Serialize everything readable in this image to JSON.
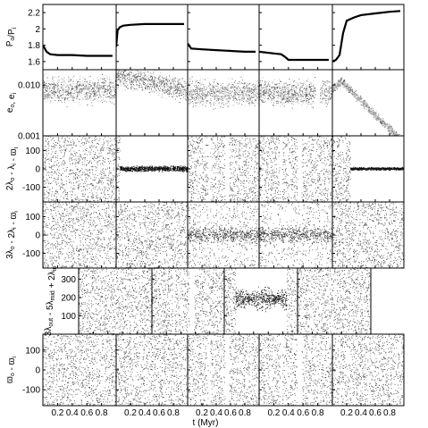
{
  "figure": {
    "xlabel": "t (Myr)"
  },
  "chart_data": {
    "type": "scatter",
    "grid": false,
    "legend": "none",
    "columns": 5,
    "x_range": [
      0,
      1
    ],
    "x_ticks": [
      "0.2",
      "0.4",
      "0.6",
      "0.8"
    ],
    "x_tick_values": [
      0.2,
      0.4,
      0.6,
      0.8
    ],
    "rows": [
      {
        "ylabel": "P_o/P_i",
        "ylim": [
          1.5,
          2.3
        ],
        "yticks": [
          1.6,
          1.8,
          2.0,
          2.2
        ],
        "ytick_labels": [
          "1.6",
          "1.8",
          "2",
          "2.2"
        ],
        "kind": "line",
        "panels": [
          {
            "x": [
              0.0,
              0.05,
              0.1,
              0.2,
              0.4,
              0.6,
              0.8,
              0.95
            ],
            "y": [
              1.8,
              1.72,
              1.69,
              1.68,
              1.68,
              1.67,
              1.67,
              1.67
            ]
          },
          {
            "x": [
              0.0,
              0.02,
              0.05,
              0.1,
              0.2,
              0.4,
              0.6,
              0.8,
              0.95
            ],
            "y": [
              1.78,
              1.98,
              2.02,
              2.04,
              2.05,
              2.06,
              2.06,
              2.06,
              2.06
            ]
          },
          {
            "x": [
              0.0,
              0.05,
              0.2,
              0.4,
              0.6,
              0.8,
              0.95
            ],
            "y": [
              1.82,
              1.76,
              1.75,
              1.74,
              1.73,
              1.72,
              1.72
            ]
          },
          {
            "x": [
              0.0,
              0.2,
              0.3,
              0.35,
              0.4,
              0.6,
              0.8,
              0.95
            ],
            "y": [
              1.72,
              1.7,
              1.69,
              1.66,
              1.62,
              1.62,
              1.62,
              1.62
            ]
          },
          {
            "x": [
              0.0,
              0.05,
              0.1,
              0.15,
              0.2,
              0.3,
              0.4,
              0.6,
              0.8,
              0.95
            ],
            "y": [
              1.6,
              1.62,
              1.68,
              1.95,
              2.1,
              2.14,
              2.17,
              2.19,
              2.21,
              2.22
            ]
          }
        ]
      },
      {
        "ylabel": "e_o, e_i",
        "ylim": [
          0.001,
          0.02
        ],
        "log": true,
        "yticks": [
          0.001,
          0.01
        ],
        "ytick_labels": [
          "0.001",
          "0.010"
        ],
        "kind": "scatter",
        "panels": [
          {
            "pattern": "dual-spread",
            "center": 0.008
          },
          {
            "pattern": "dual-decay",
            "center": 0.009
          },
          {
            "pattern": "dual-spread",
            "center": 0.007
          },
          {
            "pattern": "dual-spread-gap",
            "center": 0.007
          },
          {
            "pattern": "dual-peak",
            "center": 0.004
          }
        ]
      },
      {
        "ylabel": "2λ_o - λ_i - ϖ_i",
        "ylim": [
          -180,
          180
        ],
        "yticks": [
          -100,
          0,
          100
        ],
        "ytick_labels": [
          "-100",
          "0",
          "100"
        ],
        "kind": "scatter",
        "panels": [
          {
            "pattern": "uniform"
          },
          {
            "pattern": "libration",
            "center": 0,
            "amp": 20
          },
          {
            "pattern": "uniform-gaps"
          },
          {
            "pattern": "uniform-gaps"
          },
          {
            "pattern": "late-libration",
            "center": 0,
            "amp": 10
          }
        ]
      },
      {
        "ylabel": "3λ_o - 2λ_i - ϖ_i",
        "ylim": [
          -180,
          180
        ],
        "yticks": [
          -100,
          0,
          100
        ],
        "ytick_labels": [
          "-100",
          "0",
          "100"
        ],
        "kind": "scatter",
        "panels": [
          {
            "pattern": "uniform"
          },
          {
            "pattern": "uniform"
          },
          {
            "pattern": "partial-libration",
            "center": 0,
            "amp": 60
          },
          {
            "pattern": "partial-libration",
            "center": 0,
            "amp": 60
          },
          {
            "pattern": "uniform"
          }
        ]
      },
      {
        "ylabel": "3λ_out - 5λ_mid + 2λ_in",
        "ylim": [
          0,
          360
        ],
        "yticks": [
          100,
          200,
          300
        ],
        "ytick_labels": [
          "100",
          "200",
          "300"
        ],
        "kind": "scatter",
        "panels": [
          {
            "pattern": "uniform"
          },
          {
            "pattern": "uniform-gaps"
          },
          {
            "pattern": "three-body-libration",
            "center": 190,
            "amp": 90
          },
          {
            "pattern": "uniform"
          }
        ]
      },
      {
        "ylabel": "ϖ_o - ϖ_i",
        "ylim": [
          -180,
          180
        ],
        "yticks": [
          -100,
          0,
          100
        ],
        "ytick_labels": [
          "-100",
          "0",
          "100"
        ],
        "kind": "scatter",
        "panels": [
          {
            "pattern": "uniform"
          },
          {
            "pattern": "uniform"
          },
          {
            "pattern": "uniform-gaps"
          },
          {
            "pattern": "uniform-gaps"
          },
          {
            "pattern": "uniform"
          }
        ]
      }
    ]
  }
}
